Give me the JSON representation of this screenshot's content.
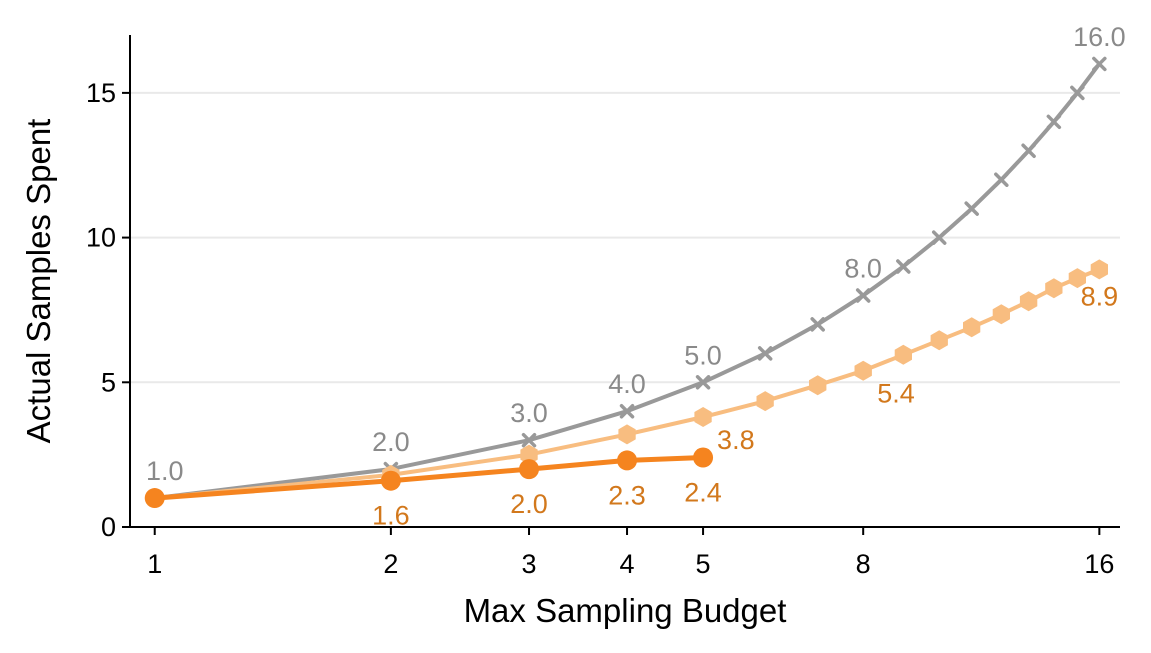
{
  "chart_data": {
    "type": "line",
    "xlabel": "Max Sampling Budget",
    "ylabel": "Actual Samples Spent",
    "xscale": "log",
    "xlim": [
      0.93,
      17
    ],
    "ylim": [
      0,
      17
    ],
    "x_ticks": [
      1,
      2,
      3,
      4,
      5,
      8,
      16
    ],
    "x_tick_labels": [
      "1",
      "2",
      "3",
      "4",
      "5",
      "8",
      "16"
    ],
    "y_ticks": [
      0,
      5,
      10,
      15
    ],
    "y_tick_labels": [
      "0",
      "5",
      "10",
      "15"
    ],
    "grid": "horizontal",
    "legend": "none",
    "series": [
      {
        "color": "#999999",
        "marker": "x",
        "x": [
          1,
          2,
          3,
          4,
          5,
          6,
          7,
          8,
          9,
          10,
          11,
          12,
          13,
          14,
          15,
          16
        ],
        "y": [
          1,
          2,
          3,
          4,
          5,
          6,
          7,
          8,
          9,
          10,
          11,
          12,
          13,
          14,
          15,
          16
        ],
        "labels": [
          {
            "x": 1,
            "y": 1,
            "text": "1.0"
          },
          {
            "x": 2,
            "y": 2,
            "text": "2.0"
          },
          {
            "x": 3,
            "y": 3,
            "text": "3.0"
          },
          {
            "x": 4,
            "y": 4,
            "text": "4.0"
          },
          {
            "x": 5,
            "y": 5,
            "text": "5.0"
          },
          {
            "x": 8,
            "y": 8,
            "text": "8.0"
          },
          {
            "x": 16,
            "y": 16,
            "text": "16.0"
          }
        ]
      },
      {
        "color": "#F8BD80",
        "marker": "hexagon",
        "x": [
          1,
          2,
          3,
          4,
          5,
          6,
          7,
          8,
          9,
          10,
          11,
          12,
          13,
          14,
          15,
          16
        ],
        "y": [
          1.0,
          1.8,
          2.5,
          3.2,
          3.8,
          4.35,
          4.9,
          5.4,
          5.95,
          6.45,
          6.9,
          7.35,
          7.8,
          8.25,
          8.6,
          8.9
        ],
        "labels": [
          {
            "x": 5,
            "y": 3.8,
            "text": "3.8"
          },
          {
            "x": 8,
            "y": 5.4,
            "text": "5.4"
          },
          {
            "x": 16,
            "y": 8.9,
            "text": "8.9"
          }
        ]
      },
      {
        "color": "#F5841F",
        "marker": "circle",
        "x": [
          1,
          2,
          3,
          4,
          5
        ],
        "y": [
          1.0,
          1.6,
          2.0,
          2.3,
          2.4
        ],
        "labels": [
          {
            "x": 2,
            "y": 1.6,
            "text": "1.6"
          },
          {
            "x": 3,
            "y": 2.0,
            "text": "2.0"
          },
          {
            "x": 4,
            "y": 2.3,
            "text": "2.3"
          },
          {
            "x": 5,
            "y": 2.4,
            "text": "2.4"
          }
        ]
      }
    ]
  }
}
